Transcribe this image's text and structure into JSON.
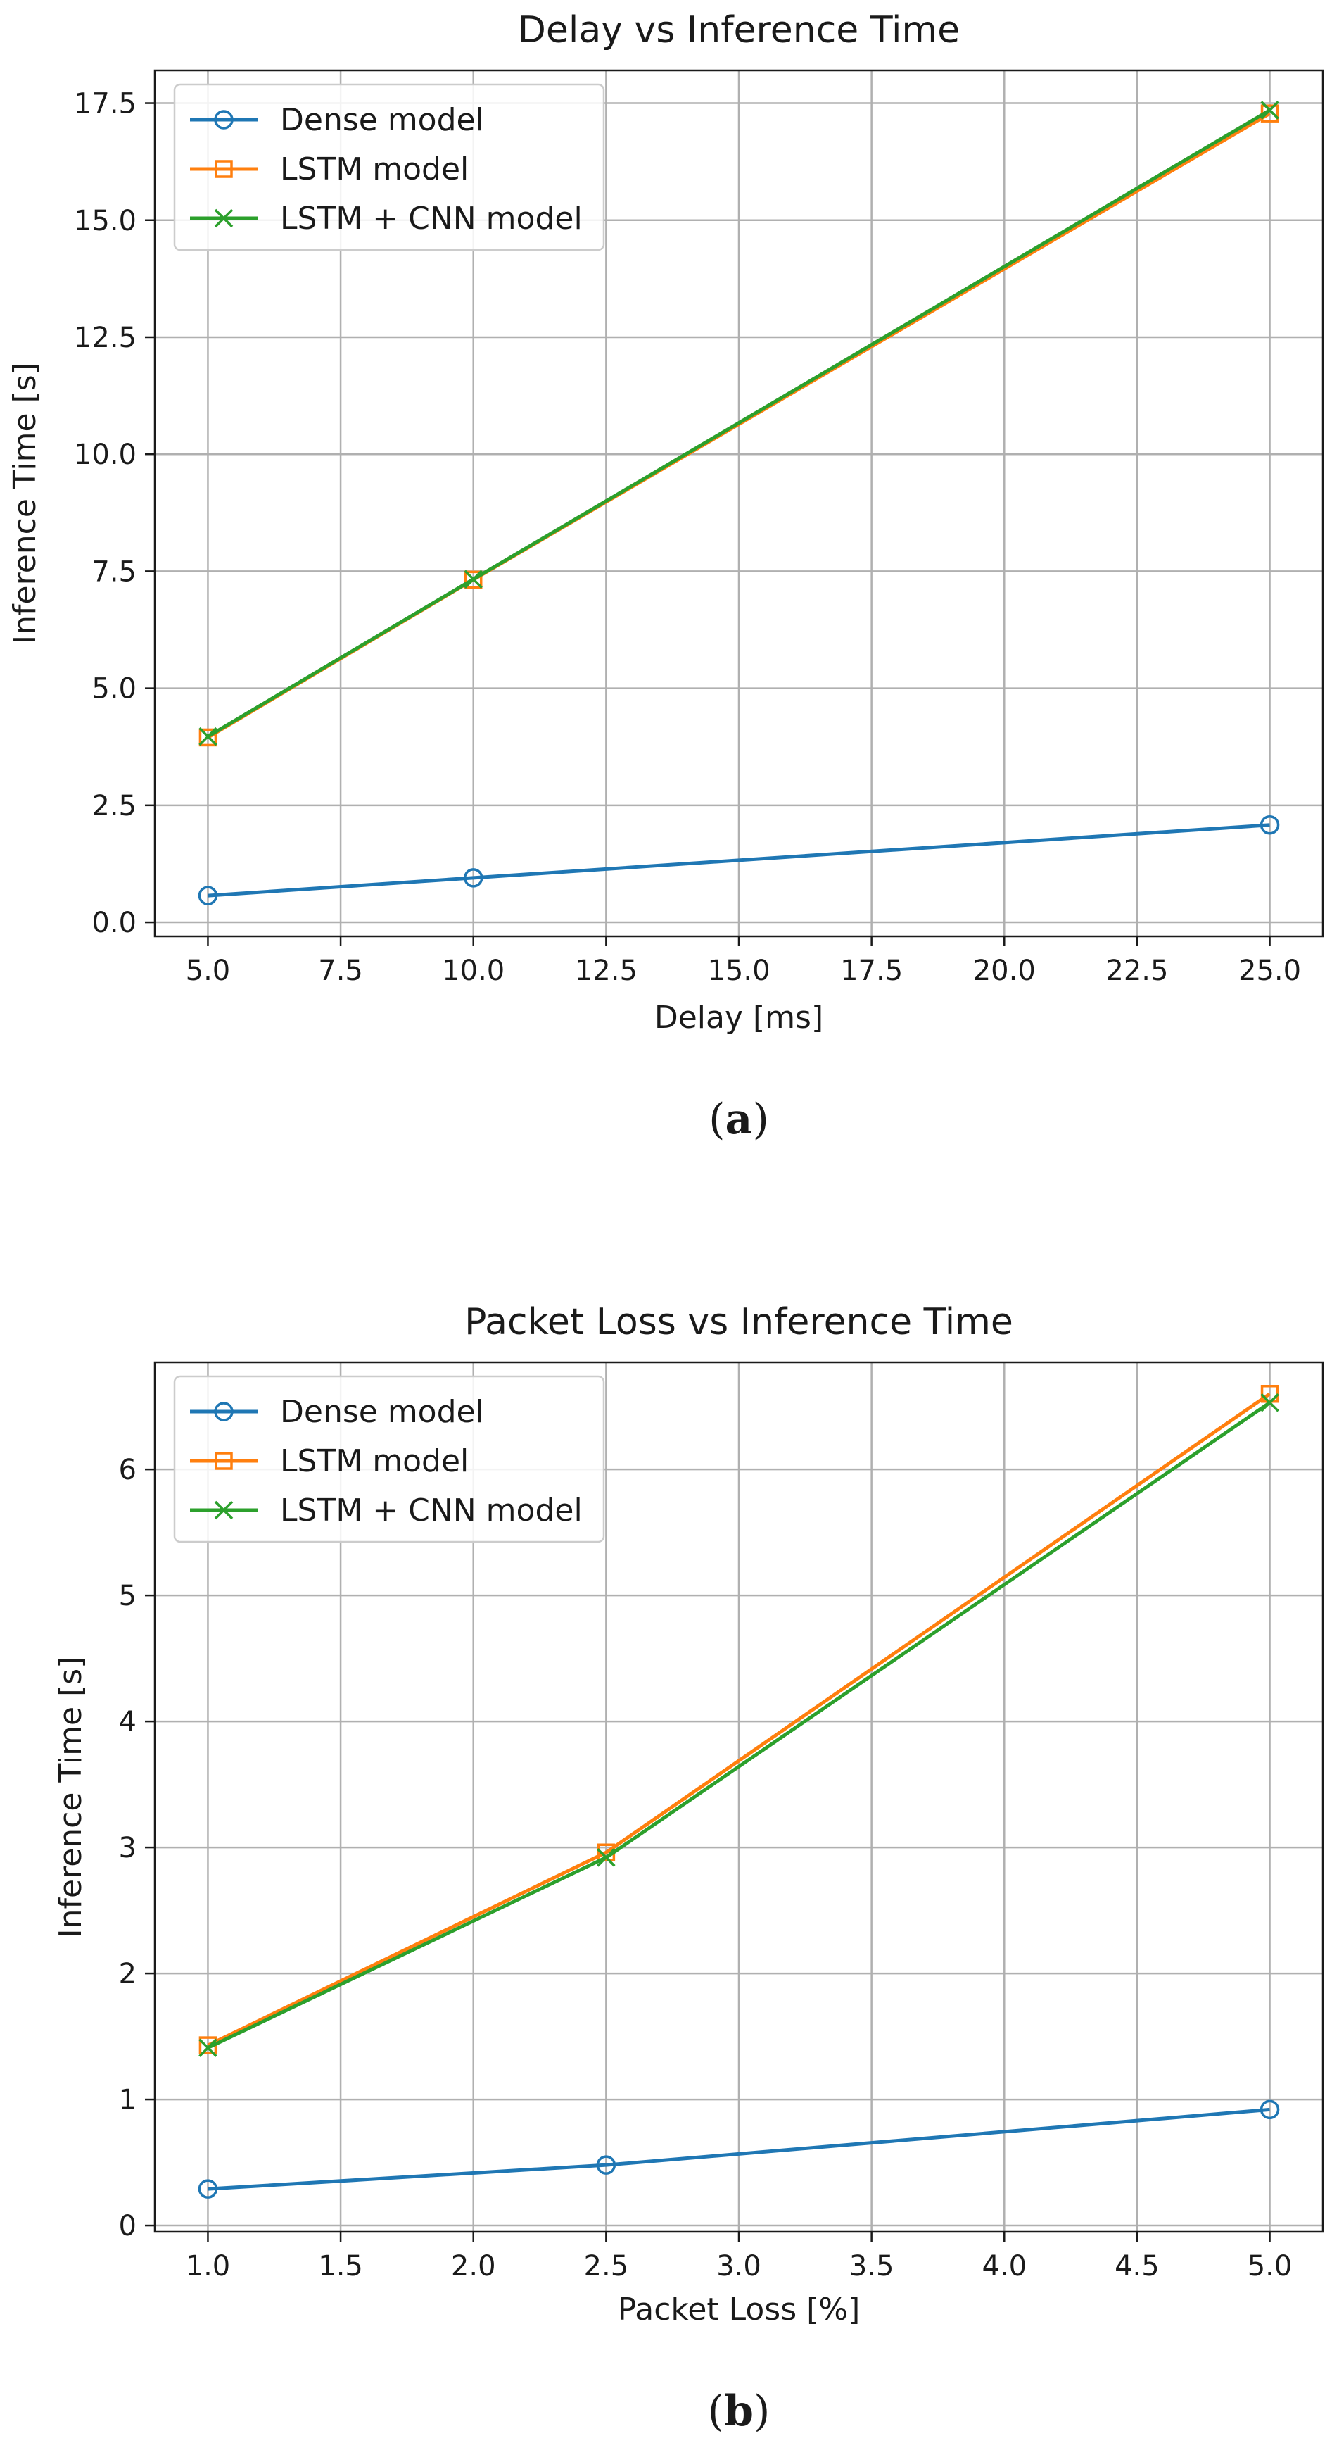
{
  "chart_data": [
    {
      "type": "line",
      "title": "Delay vs Inference Time",
      "xlabel": "Delay [ms]",
      "ylabel": "Inference Time [s]",
      "x": [
        5.0,
        10.0,
        25.0
      ],
      "xlim": [
        4.0,
        26.0
      ],
      "ylim": [
        -0.3,
        18.2
      ],
      "xticks": [
        5.0,
        7.5,
        10.0,
        12.5,
        15.0,
        17.5,
        20.0,
        22.5,
        25.0
      ],
      "yticks": [
        0.0,
        2.5,
        5.0,
        7.5,
        10.0,
        12.5,
        15.0,
        17.5
      ],
      "tick_format": "1",
      "grid": true,
      "legend": "top-left",
      "series": [
        {
          "name": "Dense model",
          "values": [
            0.57,
            0.95,
            2.08
          ],
          "color": "#1f77b4",
          "marker": "circle"
        },
        {
          "name": "LSTM model",
          "values": [
            3.95,
            7.32,
            17.28
          ],
          "color": "#ff7f0e",
          "marker": "square"
        },
        {
          "name": "LSTM + CNN model",
          "values": [
            3.97,
            7.33,
            17.35
          ],
          "color": "#2ca02c",
          "marker": "x"
        }
      ],
      "caption": [
        "(",
        "a",
        ")"
      ]
    },
    {
      "type": "line",
      "title": "Packet Loss vs Inference Time",
      "xlabel": "Packet Loss [%]",
      "ylabel": "Inference Time [s]",
      "x": [
        1.0,
        2.5,
        5.0
      ],
      "xlim": [
        0.8,
        5.2
      ],
      "ylim": [
        -0.05,
        6.85
      ],
      "xticks": [
        1.0,
        1.5,
        2.0,
        2.5,
        3.0,
        3.5,
        4.0,
        4.5,
        5.0
      ],
      "yticks": [
        0,
        1,
        2,
        3,
        4,
        5,
        6
      ],
      "tick_format": "int-y",
      "grid": true,
      "legend": "top-left",
      "series": [
        {
          "name": "Dense model",
          "values": [
            0.29,
            0.48,
            0.92
          ],
          "color": "#1f77b4",
          "marker": "circle"
        },
        {
          "name": "LSTM model",
          "values": [
            1.43,
            2.96,
            6.6
          ],
          "color": "#ff7f0e",
          "marker": "square"
        },
        {
          "name": "LSTM + CNN model",
          "values": [
            1.41,
            2.92,
            6.53
          ],
          "color": "#2ca02c",
          "marker": "x"
        }
      ],
      "caption": [
        "(",
        "b",
        ")"
      ]
    }
  ]
}
